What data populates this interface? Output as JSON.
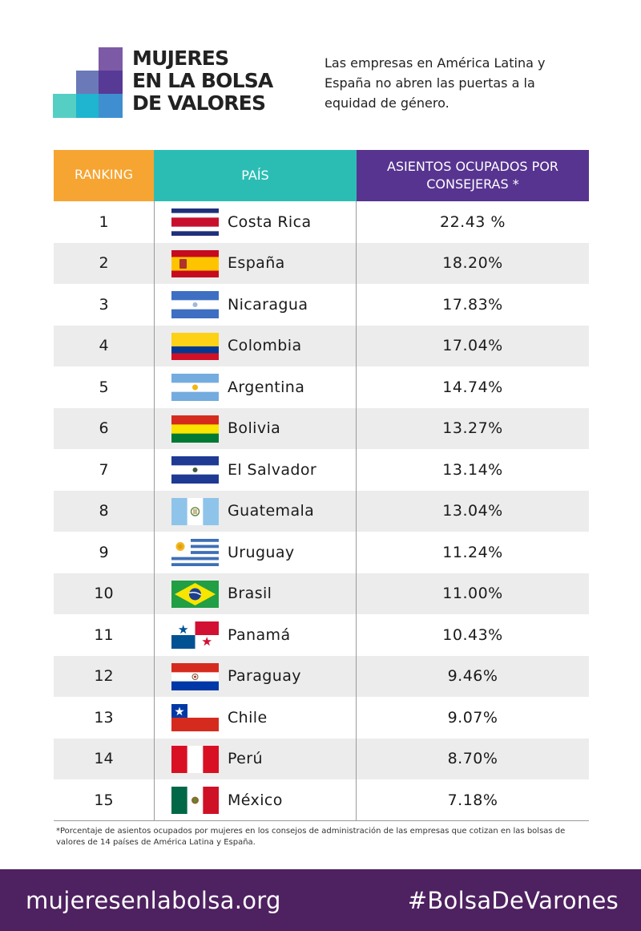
{
  "header": {
    "logo_lines": [
      "MUJERES",
      "EN LA BOLSA",
      "DE VALORES"
    ],
    "intro_text": "Las empresas en América Latina y España no abren las puertas a la equidad de género."
  },
  "colors": {
    "ranking_header": "#f6a532",
    "country_header": "#2bbdb4",
    "seats_header": "#573490",
    "footer": "#4e2160",
    "row_shade": "#ececec"
  },
  "chart_data": {
    "type": "table",
    "columns": [
      "RANKING",
      "PAÍS",
      "ASIENTOS OCUPADOS POR CONSEJERAS *"
    ],
    "rows": [
      {
        "rank": "1",
        "country": "Costa Rica",
        "value": "22.43 %",
        "flag_icon": "costa-rica-flag-icon"
      },
      {
        "rank": "2",
        "country": "España",
        "value": "18.20%",
        "flag_icon": "spain-flag-icon"
      },
      {
        "rank": "3",
        "country": "Nicaragua",
        "value": "17.83%",
        "flag_icon": "nicaragua-flag-icon"
      },
      {
        "rank": "4",
        "country": "Colombia",
        "value": "17.04%",
        "flag_icon": "colombia-flag-icon"
      },
      {
        "rank": "5",
        "country": "Argentina",
        "value": "14.74%",
        "flag_icon": "argentina-flag-icon"
      },
      {
        "rank": "6",
        "country": "Bolivia",
        "value": "13.27%",
        "flag_icon": "bolivia-flag-icon"
      },
      {
        "rank": "7",
        "country": "El Salvador",
        "value": "13.14%",
        "flag_icon": "el-salvador-flag-icon"
      },
      {
        "rank": "8",
        "country": "Guatemala",
        "value": "13.04%",
        "flag_icon": "guatemala-flag-icon"
      },
      {
        "rank": "9",
        "country": "Uruguay",
        "value": "11.24%",
        "flag_icon": "uruguay-flag-icon"
      },
      {
        "rank": "10",
        "country": "Brasil",
        "value": "11.00%",
        "flag_icon": "brazil-flag-icon"
      },
      {
        "rank": "11",
        "country": "Panamá",
        "value": "10.43%",
        "flag_icon": "panama-flag-icon"
      },
      {
        "rank": "12",
        "country": "Paraguay",
        "value": "9.46%",
        "flag_icon": "paraguay-flag-icon"
      },
      {
        "rank": "13",
        "country": "Chile",
        "value": "9.07%",
        "flag_icon": "chile-flag-icon"
      },
      {
        "rank": "14",
        "country": "Perú",
        "value": "8.70%",
        "flag_icon": "peru-flag-icon"
      },
      {
        "rank": "15",
        "country": "México",
        "value": "7.18%",
        "flag_icon": "mexico-flag-icon"
      }
    ]
  },
  "footnote": "*Porcentaje de asientos ocupados por mujeres en los consejos de administración de las empresas que cotizan en las bolsas de valores de 14 países de América Latina y España.",
  "footer": {
    "website": "mujeresenlabolsa.org",
    "hashtag": "#BolsaDeVarones"
  }
}
